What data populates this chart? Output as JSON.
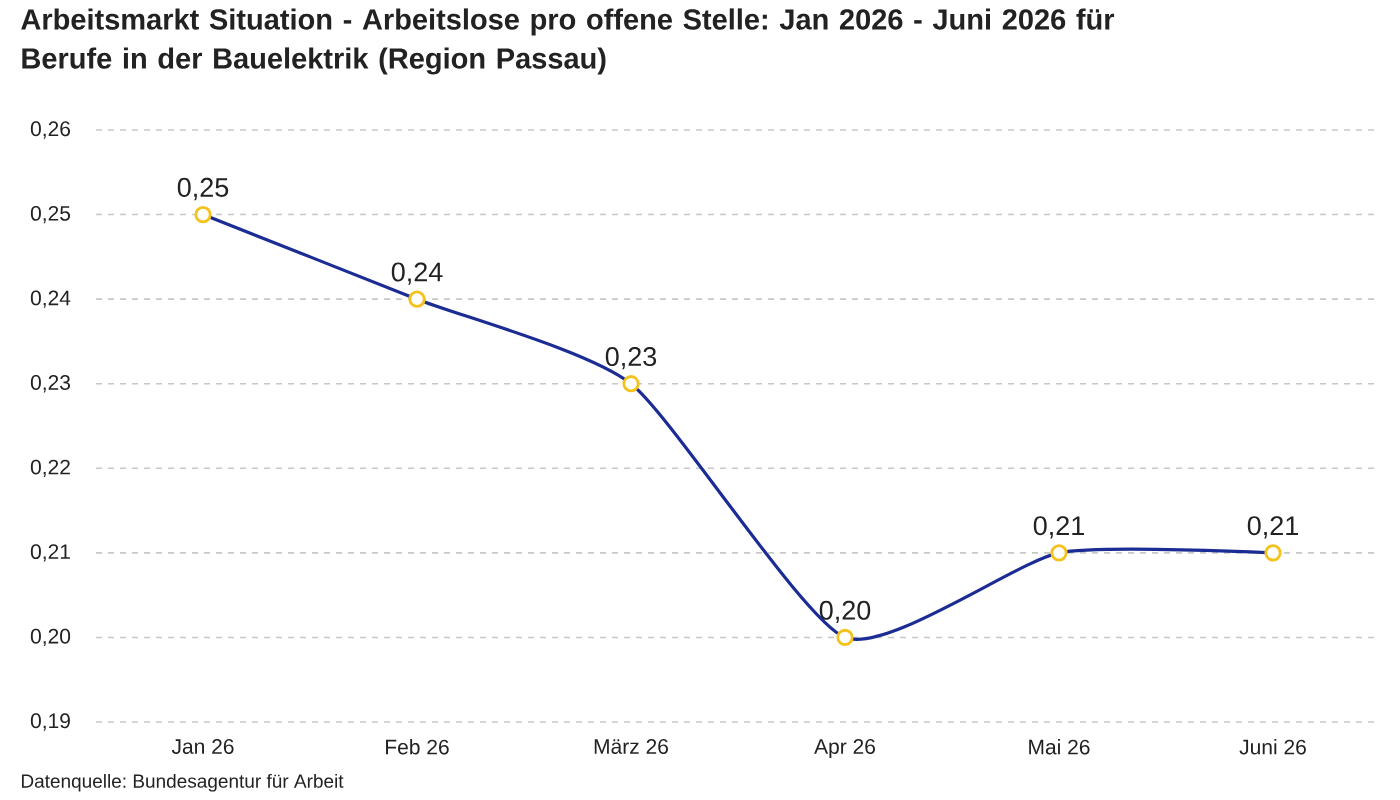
{
  "chart_data": {
    "type": "line",
    "title": "Arbeitsmarkt Situation - Arbeitslose pro offene Stelle: Jan 2026 - Juni 2026 für Berufe in der Bauelektrik (Region Passau)",
    "categories": [
      "Jan 26",
      "Feb 26",
      "März 26",
      "Apr 26",
      "Mai 26",
      "Juni 26"
    ],
    "series": [
      {
        "color": "#1b2c94",
        "values": [
          0.25,
          0.24,
          0.23,
          0.2,
          0.21,
          0.21
        ],
        "value_labels": [
          "0,25",
          "0,24",
          "0,23",
          "0,20",
          "0,21",
          "0,21"
        ]
      }
    ],
    "ylim": [
      0.19,
      0.26
    ],
    "yticks": [
      {
        "value": 0.19,
        "label": "0,19"
      },
      {
        "value": 0.2,
        "label": "0,20"
      },
      {
        "value": 0.21,
        "label": "0,21"
      },
      {
        "value": 0.22,
        "label": "0,22"
      },
      {
        "value": 0.23,
        "label": "0,23"
      },
      {
        "value": 0.24,
        "label": "0,24"
      },
      {
        "value": 0.25,
        "label": "0,25"
      },
      {
        "value": 0.26,
        "label": "0,26"
      }
    ],
    "grid": "y",
    "marker": "circle",
    "line_style": "solid",
    "annotations": [
      "Datenquelle: Bundesagentur für Arbeit"
    ]
  }
}
